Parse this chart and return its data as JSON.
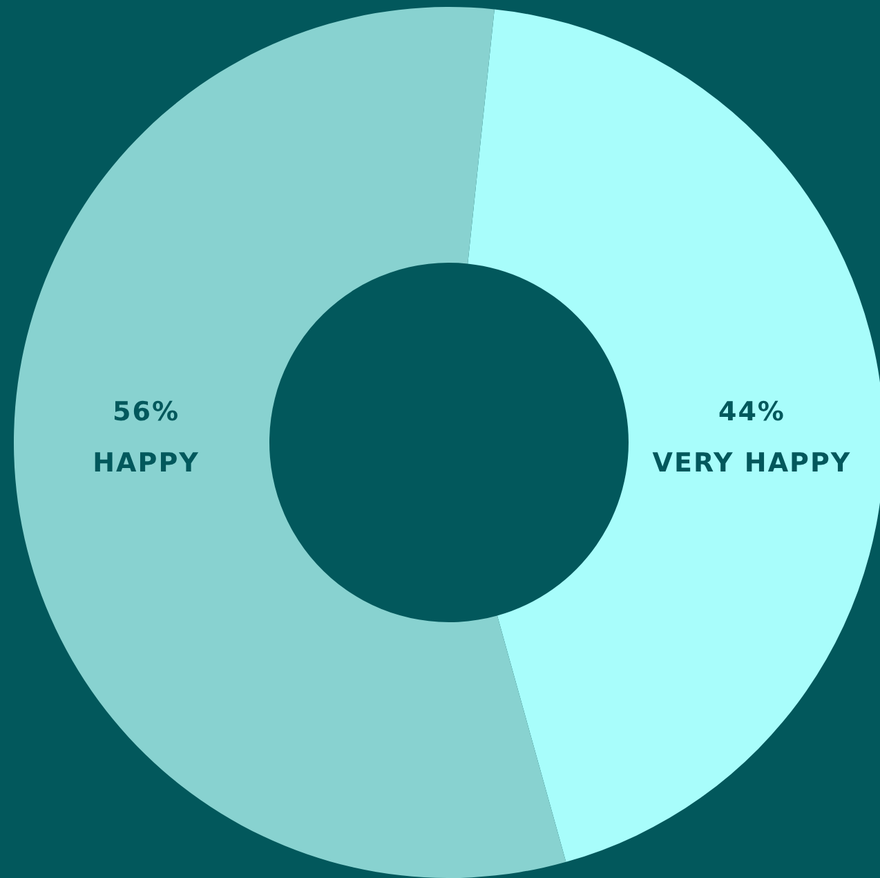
{
  "chart_data": {
    "type": "donut",
    "categories": [
      "VERY HAPPY",
      "HAPPY"
    ],
    "values": [
      44,
      56
    ],
    "colors": [
      "#a8fdfb",
      "#88d2d0"
    ],
    "value_labels": [
      "44%",
      "56%"
    ]
  }
}
